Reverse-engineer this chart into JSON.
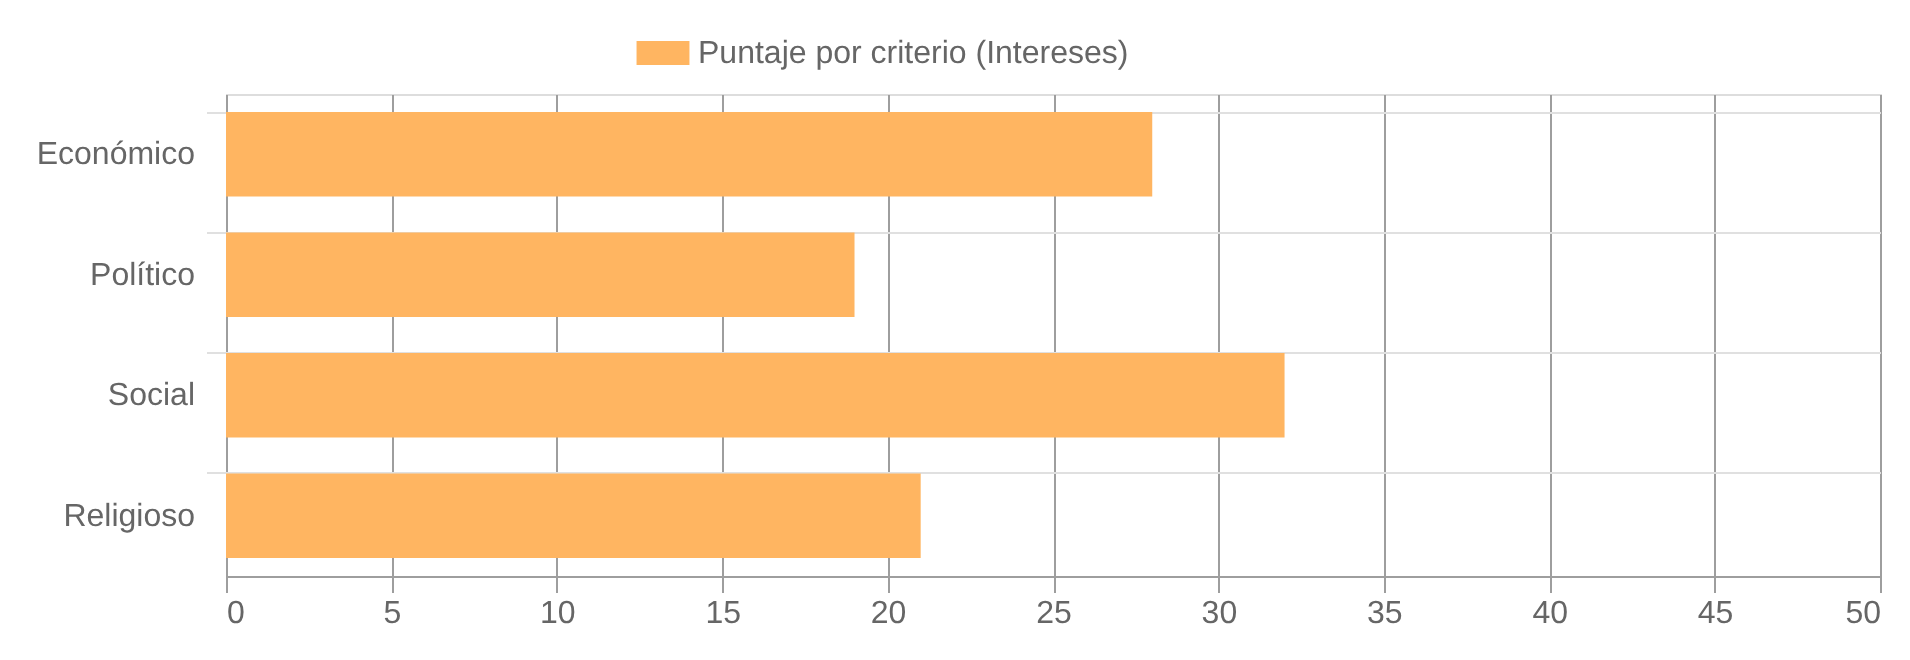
{
  "chart_data": {
    "type": "bar",
    "orientation": "horizontal",
    "categories": [
      "Económico",
      "Político",
      "Social",
      "Religioso"
    ],
    "series": [
      {
        "name": "Puntaje por criterio (Intereses)",
        "color": "#ffb561",
        "values": [
          28,
          19,
          32,
          21
        ]
      }
    ],
    "xlim": [
      0,
      50
    ],
    "xticks": [
      0,
      5,
      10,
      15,
      20,
      25,
      30,
      35,
      40,
      45,
      50
    ],
    "grid": true,
    "legend": "top"
  }
}
